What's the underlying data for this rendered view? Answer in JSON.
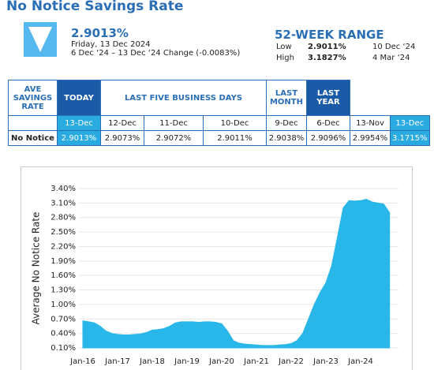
{
  "header": {
    "title": "No Notice Savings Rate",
    "rate": "2.9013%",
    "date": "Friday, 13 Dec 2024",
    "change": "6 Dec ‘24 – 13 Dec ‘24 Change (-0.0083%)"
  },
  "range": {
    "title": "52-WEEK RANGE",
    "low_label": "Low",
    "low_value": "2.9011%",
    "low_date": "10 Dec ‘24",
    "high_label": "High",
    "high_value": "3.1827%",
    "high_date": "4 Mar ‘24"
  },
  "table": {
    "header": [
      "AVE SAVINGS RATE",
      "TODAY",
      "LAST FIVE BUSINESS DAYS",
      "LAST MONTH",
      "LAST YEAR"
    ],
    "dates": [
      "13-Dec",
      "12-Dec",
      "11-Dec",
      "10-Dec",
      "9-Dec",
      "6-Dec",
      "13-Nov",
      "13-Dec"
    ],
    "row_label": "No Notice",
    "values": [
      "2.9013%",
      "2.9073%",
      "2.9072%",
      "2.9011%",
      "2.9038%",
      "2.9096%",
      "2.9954%",
      "3.1715%"
    ]
  },
  "chart_data": {
    "type": "area",
    "y_label": "Average No Notice Rate",
    "color": "#29b6e8",
    "grid": true,
    "categories": [
      "Jan-16",
      null,
      null,
      null,
      null,
      null,
      "Jan-17",
      null,
      null,
      null,
      null,
      null,
      "Jan-18",
      null,
      null,
      null,
      null,
      null,
      "Jan-19",
      null,
      null,
      null,
      null,
      null,
      "Jan-20",
      null,
      null,
      null,
      null,
      null,
      "Jan-21",
      null,
      null,
      null,
      null,
      null,
      "Jan-22",
      null,
      null,
      null,
      null,
      null,
      "Jan-23",
      null,
      null,
      null,
      null,
      null,
      "Jan-24",
      null,
      null,
      null,
      null,
      null
    ],
    "values": [
      0.66,
      0.64,
      0.62,
      0.55,
      0.45,
      0.4,
      0.38,
      0.37,
      0.37,
      0.38,
      0.39,
      0.42,
      0.47,
      0.48,
      0.5,
      0.55,
      0.62,
      0.64,
      0.64,
      0.64,
      0.63,
      0.64,
      0.64,
      0.63,
      0.6,
      0.45,
      0.25,
      0.2,
      0.18,
      0.17,
      0.16,
      0.15,
      0.15,
      0.15,
      0.16,
      0.17,
      0.19,
      0.25,
      0.4,
      0.7,
      1.0,
      1.25,
      1.45,
      1.8,
      2.4,
      3.0,
      3.15,
      3.14,
      3.15,
      3.18,
      3.12,
      3.1,
      3.08,
      2.9
    ],
    "ylim": [
      0.1,
      3.4
    ],
    "yticks": [
      {
        "value": 0.1,
        "label": "0.10%"
      },
      {
        "value": 0.4,
        "label": "0.40%"
      },
      {
        "value": 0.7,
        "label": "0.70%"
      },
      {
        "value": 1.0,
        "label": "1.00%"
      },
      {
        "value": 1.3,
        "label": "1.30%"
      },
      {
        "value": 1.6,
        "label": "1.60%"
      },
      {
        "value": 1.9,
        "label": "1.90%"
      },
      {
        "value": 2.2,
        "label": "2.20%"
      },
      {
        "value": 2.5,
        "label": "2.50%"
      },
      {
        "value": 2.8,
        "label": "2.80%"
      },
      {
        "value": 3.1,
        "label": "3.10%"
      },
      {
        "value": 3.4,
        "label": "3.40%"
      }
    ]
  }
}
